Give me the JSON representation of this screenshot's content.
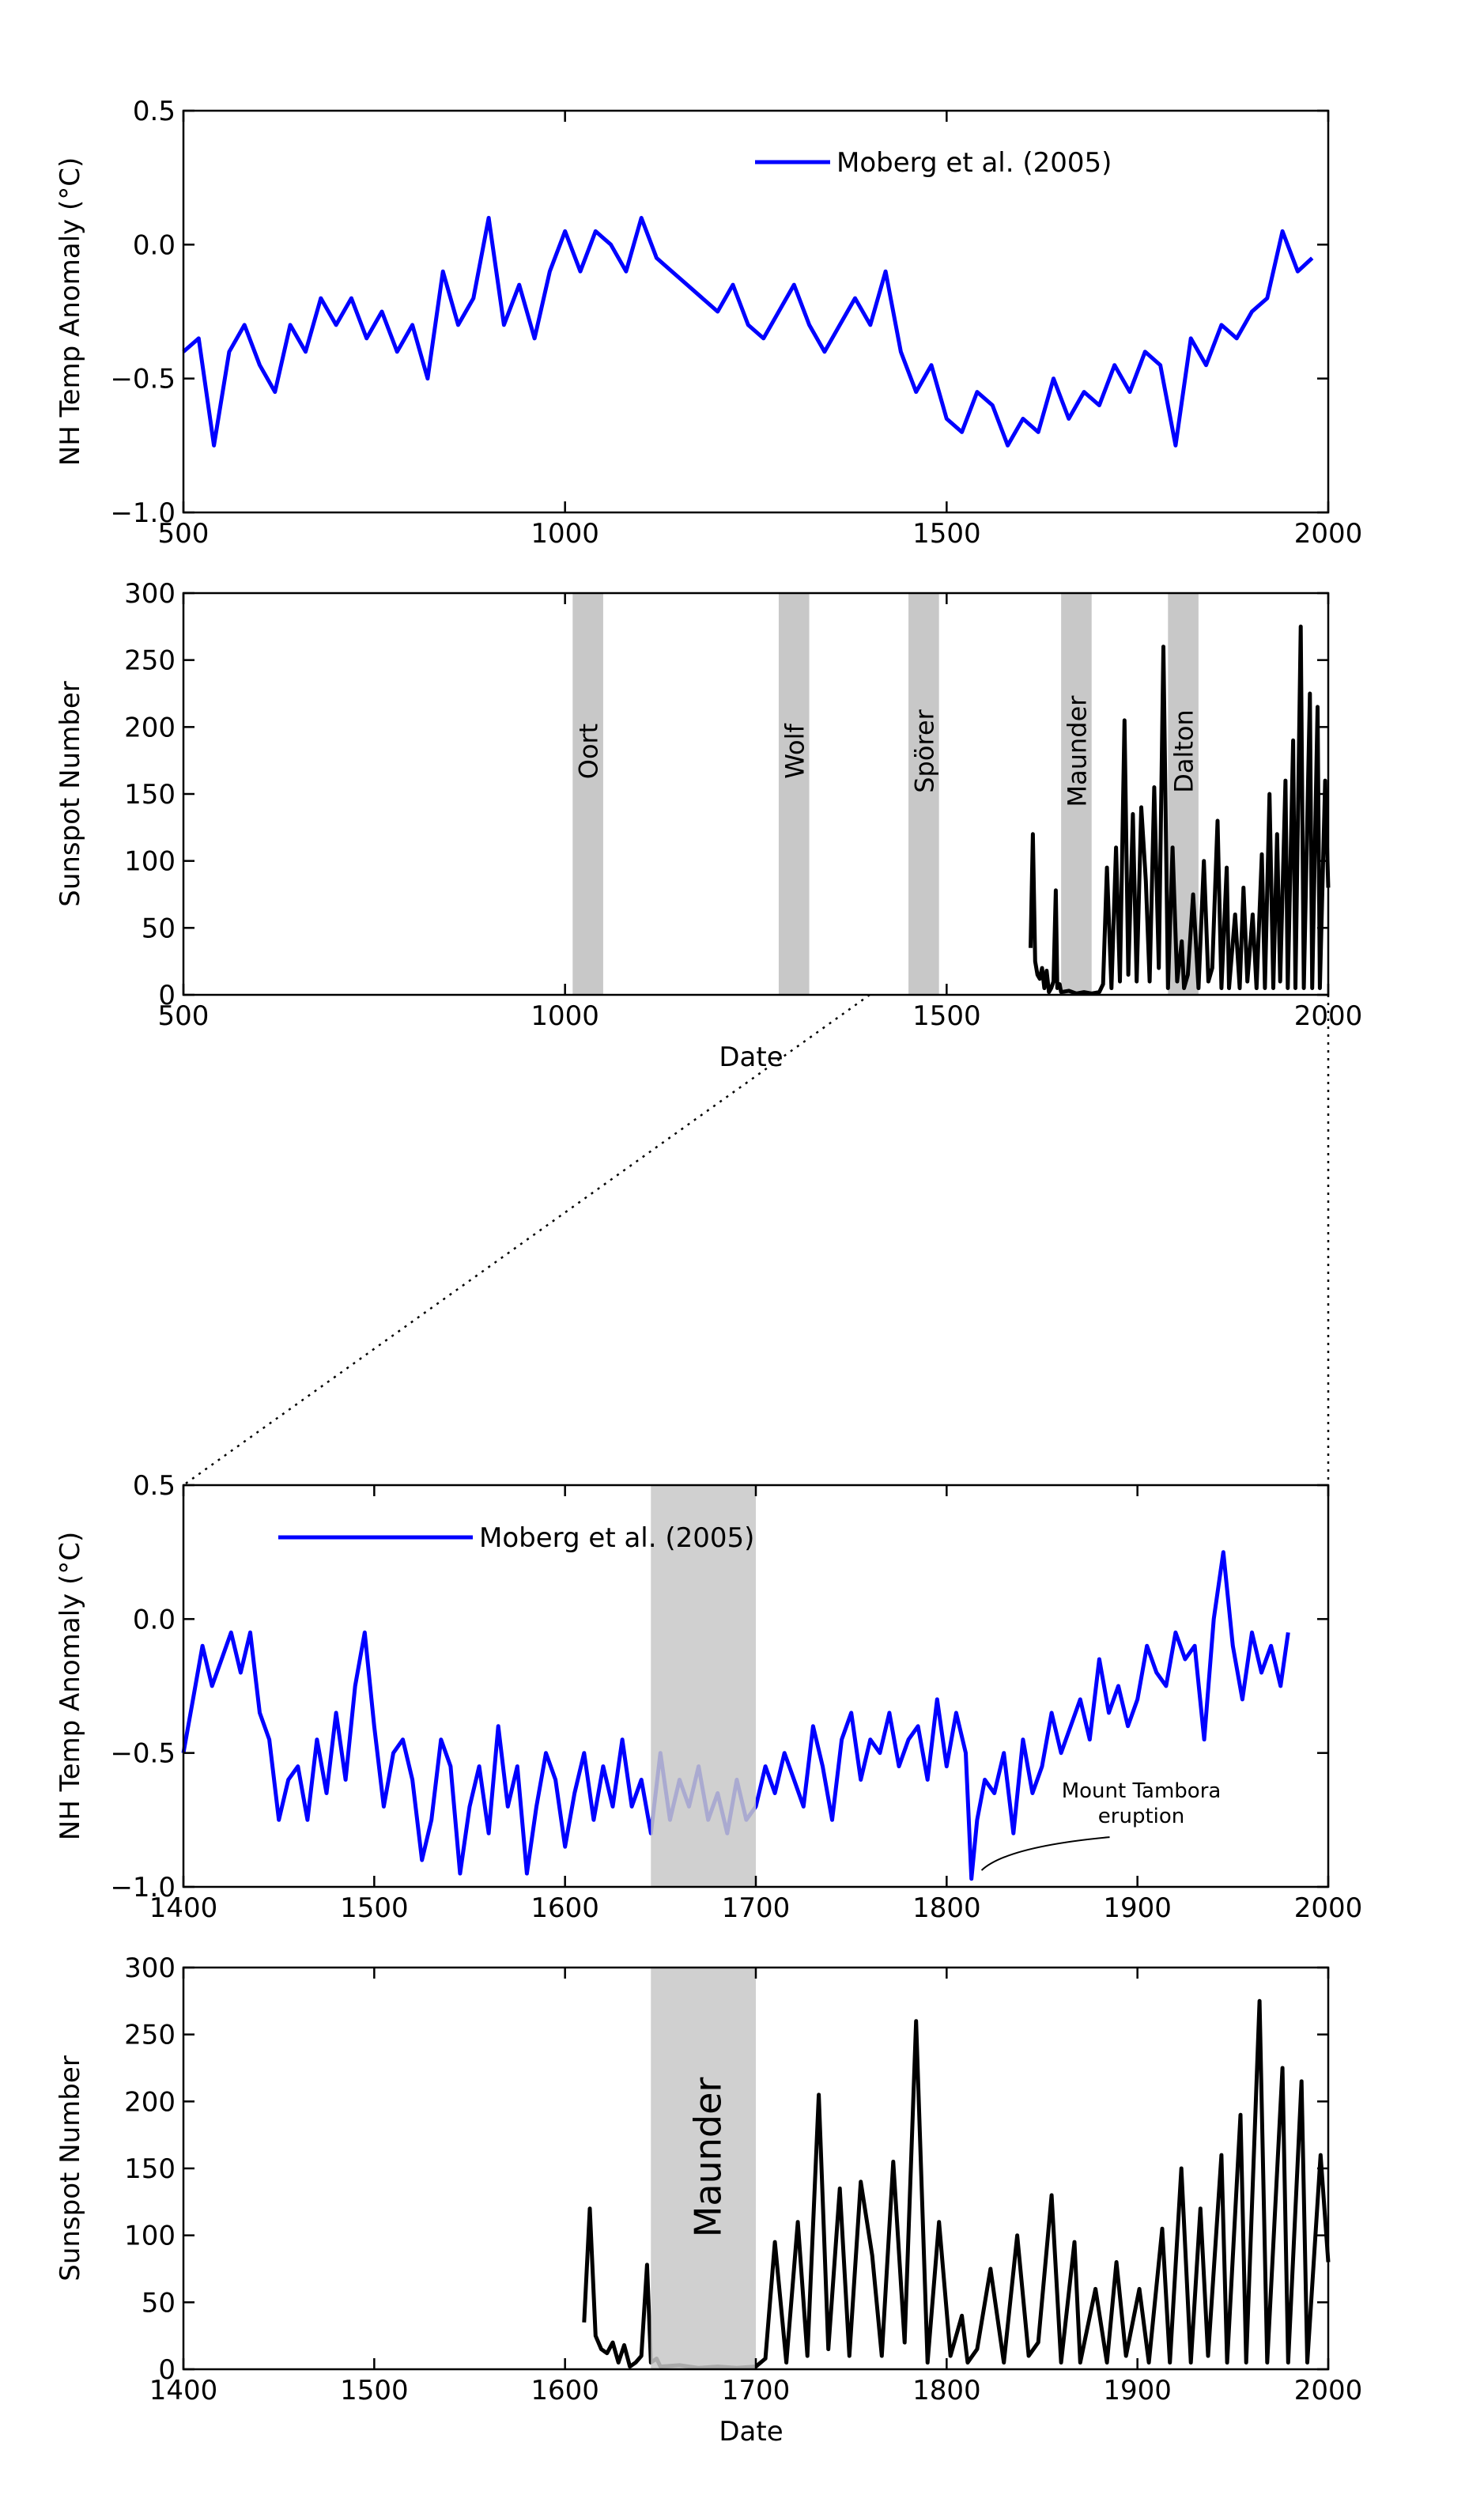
{
  "chart_data": [
    {
      "id": "top-temp",
      "type": "line",
      "xlabel": "",
      "ylabel": "NH Temp Anomaly (°C)",
      "xlim": [
        500,
        2000
      ],
      "ylim": [
        -1.0,
        0.5
      ],
      "xticks": [
        "500",
        "1000",
        "1500",
        "2000"
      ],
      "yticks": [
        "−1.0",
        "−0.5",
        "0.0",
        "0.5"
      ],
      "legend": {
        "label": "Moberg et al. (2005)",
        "position": "upper-right"
      },
      "color": "#0000ff",
      "series": [
        {
          "name": "Moberg et al. (2005)",
          "x": [
            500,
            520,
            540,
            560,
            580,
            600,
            620,
            640,
            660,
            680,
            700,
            720,
            740,
            760,
            780,
            800,
            820,
            840,
            860,
            880,
            900,
            920,
            940,
            960,
            980,
            1000,
            1020,
            1040,
            1060,
            1080,
            1100,
            1120,
            1140,
            1160,
            1180,
            1200,
            1220,
            1240,
            1260,
            1280,
            1300,
            1320,
            1340,
            1360,
            1380,
            1400,
            1420,
            1440,
            1460,
            1480,
            1500,
            1520,
            1540,
            1560,
            1580,
            1600,
            1620,
            1640,
            1660,
            1680,
            1700,
            1720,
            1740,
            1760,
            1780,
            1800,
            1820,
            1840,
            1860,
            1880,
            1900,
            1920,
            1940,
            1960,
            1979
          ],
          "y": [
            -0.4,
            -0.35,
            -0.75,
            -0.4,
            -0.3,
            -0.45,
            -0.55,
            -0.3,
            -0.4,
            -0.2,
            -0.3,
            -0.2,
            -0.35,
            -0.25,
            -0.4,
            -0.3,
            -0.5,
            -0.1,
            -0.3,
            -0.2,
            0.1,
            -0.3,
            -0.15,
            -0.35,
            -0.1,
            0.05,
            -0.1,
            0.05,
            0.0,
            -0.1,
            0.1,
            -0.05,
            -0.1,
            -0.15,
            -0.2,
            -0.25,
            -0.15,
            -0.3,
            -0.35,
            -0.25,
            -0.15,
            -0.3,
            -0.4,
            -0.3,
            -0.2,
            -0.3,
            -0.1,
            -0.4,
            -0.55,
            -0.45,
            -0.65,
            -0.7,
            -0.55,
            -0.6,
            -0.75,
            -0.65,
            -0.7,
            -0.5,
            -0.65,
            -0.55,
            -0.6,
            -0.45,
            -0.55,
            -0.4,
            -0.45,
            -0.75,
            -0.35,
            -0.45,
            -0.3,
            -0.35,
            -0.25,
            -0.2,
            0.05,
            -0.1,
            -0.05
          ]
        }
      ]
    },
    {
      "id": "top-sunspot",
      "type": "line",
      "xlabel": "Date",
      "ylabel": "Sunspot Number",
      "xlim": [
        500,
        2000
      ],
      "ylim": [
        0,
        300
      ],
      "xticks": [
        "500",
        "1000",
        "1500",
        "2000"
      ],
      "yticks": [
        "0",
        "50",
        "100",
        "150",
        "200",
        "250",
        "300"
      ],
      "color": "#000000",
      "minima": [
        {
          "name": "Oort",
          "start": 1010,
          "end": 1050
        },
        {
          "name": "Wolf",
          "start": 1280,
          "end": 1320
        },
        {
          "name": "Spörer",
          "start": 1450,
          "end": 1490
        },
        {
          "name": "Maunder",
          "start": 1650,
          "end": 1690
        },
        {
          "name": "Dalton",
          "start": 1790,
          "end": 1830
        }
      ],
      "series": [
        {
          "name": "",
          "x": [
            1610,
            1613,
            1616,
            1619,
            1622,
            1625,
            1628,
            1631,
            1634,
            1637,
            1640,
            1643,
            1645,
            1648,
            1650,
            1660,
            1670,
            1680,
            1690,
            1700,
            1705,
            1710,
            1716,
            1722,
            1727,
            1733,
            1738,
            1744,
            1749,
            1755,
            1761,
            1766,
            1772,
            1778,
            1784,
            1790,
            1796,
            1802,
            1808,
            1811,
            1816,
            1823,
            1830,
            1837,
            1843,
            1848,
            1855,
            1860,
            1867,
            1870,
            1878,
            1884,
            1889,
            1894,
            1901,
            1906,
            1913,
            1917,
            1923,
            1928,
            1933,
            1937,
            1944,
            1947,
            1954,
            1957,
            1964,
            1968,
            1976,
            1979,
            1986,
            1989,
            1996,
            2000
          ],
          "y": [
            35,
            120,
            25,
            15,
            12,
            20,
            5,
            18,
            2,
            5,
            10,
            78,
            5,
            8,
            2,
            3,
            1,
            2,
            1,
            2,
            8,
            95,
            5,
            110,
            10,
            205,
            15,
            135,
            10,
            140,
            85,
            10,
            155,
            20,
            260,
            5,
            110,
            10,
            40,
            5,
            15,
            75,
            5,
            100,
            10,
            20,
            130,
            5,
            95,
            5,
            60,
            5,
            80,
            10,
            60,
            5,
            105,
            5,
            150,
            5,
            120,
            10,
            160,
            5,
            190,
            5,
            275,
            5,
            225,
            5,
            215,
            5,
            160,
            80
          ]
        }
      ]
    },
    {
      "id": "bottom-temp",
      "type": "line",
      "xlabel": "",
      "ylabel": "NH Temp Anomaly (°C)",
      "xlim": [
        1400,
        2000
      ],
      "ylim": [
        -1.0,
        0.5
      ],
      "xticks": [
        "1400",
        "1500",
        "1600",
        "1700",
        "1800",
        "1900",
        "2000"
      ],
      "yticks": [
        "−1.0",
        "−0.5",
        "0.0",
        "0.5"
      ],
      "legend": {
        "label": "Moberg et al. (2005)",
        "position": "upper-left"
      },
      "highlight": {
        "start": 1645,
        "end": 1700
      },
      "annotation": {
        "text_lines": [
          "Mount Tambora",
          "eruption"
        ],
        "x": 1815,
        "y": -0.95
      },
      "color": "#0000ff",
      "series": [
        {
          "name": "Moberg et al. (2005)",
          "x": [
            1400,
            1405,
            1410,
            1415,
            1420,
            1425,
            1430,
            1435,
            1440,
            1445,
            1450,
            1455,
            1460,
            1465,
            1470,
            1475,
            1480,
            1485,
            1490,
            1495,
            1500,
            1505,
            1510,
            1515,
            1520,
            1525,
            1530,
            1535,
            1540,
            1545,
            1550,
            1555,
            1560,
            1565,
            1570,
            1575,
            1580,
            1585,
            1590,
            1595,
            1600,
            1605,
            1610,
            1615,
            1620,
            1625,
            1630,
            1635,
            1640,
            1645,
            1650,
            1655,
            1660,
            1665,
            1670,
            1675,
            1680,
            1685,
            1690,
            1695,
            1700,
            1705,
            1710,
            1715,
            1720,
            1725,
            1730,
            1735,
            1740,
            1745,
            1750,
            1755,
            1760,
            1765,
            1770,
            1775,
            1780,
            1785,
            1790,
            1795,
            1800,
            1805,
            1810,
            1813,
            1816,
            1820,
            1825,
            1830,
            1835,
            1840,
            1845,
            1850,
            1855,
            1860,
            1865,
            1870,
            1875,
            1880,
            1885,
            1890,
            1895,
            1900,
            1905,
            1910,
            1915,
            1920,
            1925,
            1930,
            1935,
            1940,
            1945,
            1950,
            1955,
            1960,
            1965,
            1970,
            1975,
            1979
          ],
          "y": [
            -0.5,
            -0.3,
            -0.1,
            -0.25,
            -0.15,
            -0.05,
            -0.2,
            -0.05,
            -0.35,
            -0.45,
            -0.75,
            -0.6,
            -0.55,
            -0.75,
            -0.45,
            -0.65,
            -0.35,
            -0.6,
            -0.25,
            -0.05,
            -0.4,
            -0.7,
            -0.5,
            -0.45,
            -0.6,
            -0.9,
            -0.75,
            -0.45,
            -0.55,
            -0.95,
            -0.7,
            -0.55,
            -0.8,
            -0.4,
            -0.7,
            -0.55,
            -0.95,
            -0.7,
            -0.5,
            -0.6,
            -0.85,
            -0.65,
            -0.5,
            -0.75,
            -0.55,
            -0.7,
            -0.45,
            -0.7,
            -0.6,
            -0.8,
            -0.5,
            -0.75,
            -0.6,
            -0.7,
            -0.55,
            -0.75,
            -0.65,
            -0.8,
            -0.6,
            -0.75,
            -0.7,
            -0.55,
            -0.65,
            -0.5,
            -0.6,
            -0.7,
            -0.4,
            -0.55,
            -0.75,
            -0.45,
            -0.35,
            -0.6,
            -0.45,
            -0.5,
            -0.35,
            -0.55,
            -0.45,
            -0.4,
            -0.6,
            -0.3,
            -0.55,
            -0.35,
            -0.5,
            -0.97,
            -0.75,
            -0.6,
            -0.65,
            -0.5,
            -0.8,
            -0.45,
            -0.65,
            -0.55,
            -0.35,
            -0.5,
            -0.4,
            -0.3,
            -0.45,
            -0.15,
            -0.35,
            -0.25,
            -0.4,
            -0.3,
            -0.1,
            -0.2,
            -0.25,
            -0.05,
            -0.15,
            -0.1,
            -0.45,
            0.0,
            0.25,
            -0.1,
            -0.3,
            -0.05,
            -0.2,
            -0.1,
            -0.25,
            -0.05
          ]
        }
      ]
    },
    {
      "id": "bottom-sunspot",
      "type": "line",
      "xlabel": "Date",
      "ylabel": "Sunspot Number",
      "xlim": [
        1400,
        2000
      ],
      "ylim": [
        0,
        300
      ],
      "xticks": [
        "1400",
        "1500",
        "1600",
        "1700",
        "1800",
        "1900",
        "2000"
      ],
      "yticks": [
        "0",
        "50",
        "100",
        "150",
        "200",
        "250",
        "300"
      ],
      "highlight": {
        "name": "Maunder",
        "start": 1645,
        "end": 1700
      },
      "color": "#000000",
      "series": [
        {
          "name": "",
          "x": [
            1610,
            1613,
            1616,
            1619,
            1622,
            1625,
            1628,
            1631,
            1634,
            1637,
            1640,
            1643,
            1645,
            1648,
            1650,
            1660,
            1670,
            1680,
            1690,
            1700,
            1705,
            1710,
            1716,
            1722,
            1727,
            1733,
            1738,
            1744,
            1749,
            1755,
            1761,
            1766,
            1772,
            1778,
            1784,
            1790,
            1796,
            1802,
            1808,
            1811,
            1816,
            1823,
            1830,
            1837,
            1843,
            1848,
            1855,
            1860,
            1867,
            1870,
            1878,
            1884,
            1889,
            1894,
            1901,
            1906,
            1913,
            1917,
            1923,
            1928,
            1933,
            1937,
            1944,
            1947,
            1954,
            1957,
            1964,
            1968,
            1976,
            1979,
            1986,
            1989,
            1996,
            2000
          ],
          "y": [
            35,
            120,
            25,
            15,
            12,
            20,
            5,
            18,
            2,
            5,
            10,
            78,
            5,
            8,
            2,
            3,
            1,
            2,
            1,
            2,
            8,
            95,
            5,
            110,
            10,
            205,
            15,
            135,
            10,
            140,
            85,
            10,
            155,
            20,
            260,
            5,
            110,
            10,
            40,
            5,
            15,
            75,
            5,
            100,
            10,
            20,
            130,
            5,
            95,
            5,
            60,
            5,
            80,
            10,
            60,
            5,
            105,
            5,
            150,
            5,
            120,
            10,
            160,
            5,
            190,
            5,
            275,
            5,
            225,
            5,
            215,
            5,
            160,
            80
          ]
        }
      ]
    }
  ]
}
